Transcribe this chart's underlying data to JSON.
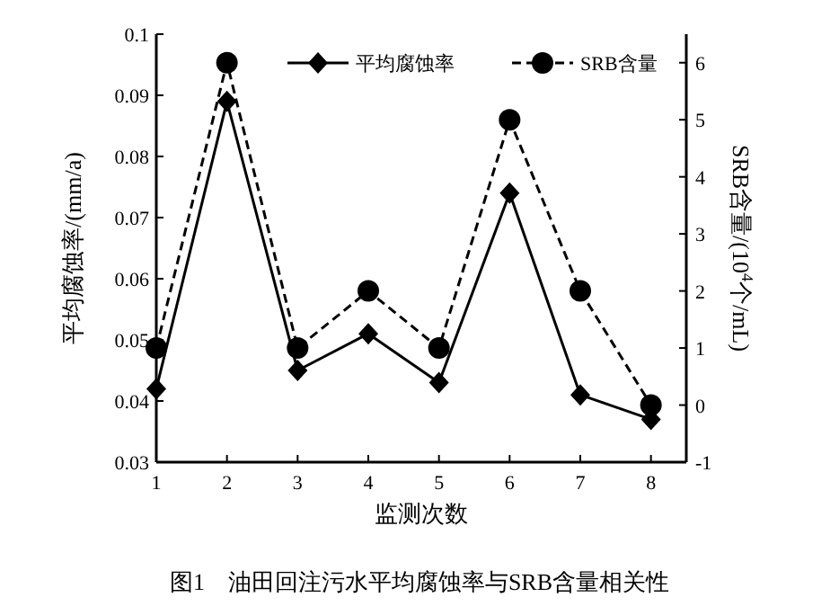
{
  "chart_data": {
    "type": "line",
    "title": "图1　油田回注污水平均腐蚀率与SRB含量相关性",
    "xlabel": "监测次数",
    "ylabel": "平均腐蚀率/(mm/a)",
    "y2label": "SRB含量/(10$^{4}$个/mL)",
    "x": [
      1,
      2,
      3,
      4,
      5,
      6,
      7,
      8
    ],
    "xlim": [
      1,
      8.5
    ],
    "xticks": [
      1,
      2,
      3,
      4,
      5,
      6,
      7,
      8
    ],
    "ylim": [
      0.03,
      0.1
    ],
    "yticks": [
      0.03,
      0.04,
      0.05,
      0.06,
      0.07,
      0.08,
      0.09,
      0.1
    ],
    "y2lim": [
      -1,
      6.5
    ],
    "y2ticks": [
      -1,
      0,
      1,
      2,
      3,
      4,
      5,
      6
    ],
    "legend": "top right",
    "grid": false,
    "series": [
      {
        "name": "平均腐蚀率",
        "color": "#000000",
        "marker": "diamond",
        "line_style": "solid",
        "values": [
          0.042,
          0.089,
          0.045,
          0.051,
          0.043,
          0.074,
          0.041,
          0.037
        ]
      },
      {
        "name": "SRB含量",
        "color": "#000000",
        "marker": "circle",
        "line_style": "dashed",
        "axis": "y2",
        "values": [
          1,
          6,
          1,
          2,
          1,
          5,
          2,
          0
        ]
      }
    ]
  }
}
